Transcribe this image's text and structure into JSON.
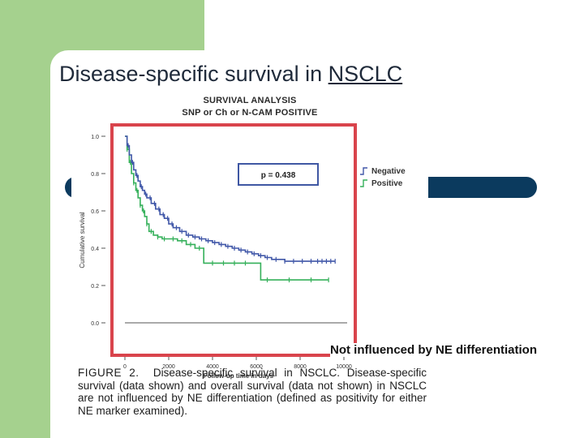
{
  "slide": {
    "title_prefix": "Disease-specific survival in ",
    "title_link": "NSCLC",
    "callout": "Not influenced by NE differentiation"
  },
  "figure": {
    "panel_title_line1": "SURVIVAL ANALYSIS",
    "panel_title_line2": "SNP or Ch or N-CAM POSITIVE",
    "p_value": "p = 0.438",
    "caption_label": "FIGURE 2.",
    "caption_text": "Disease-specific survival in NSCLC. Disease-specific survival (data shown) and overall survival (data not shown) in NSCLC are not influenced by NE differentiation (defined as positivity for either NE marker examined)."
  },
  "colors": {
    "frame": "#d9444c",
    "negative": "#4057a8",
    "positive": "#35b05a",
    "green_panel": "#a5d18e",
    "pill": "#0b3a5e"
  },
  "chart_data": {
    "type": "line",
    "title": "SURVIVAL ANALYSIS SNP or Ch or N-CAM POSITIVE",
    "xlabel": "Follow-up time in days",
    "ylabel": "Cumulative survival",
    "xlim": [
      0,
      10000
    ],
    "ylim": [
      0,
      1.0
    ],
    "x_ticks": [
      0,
      2000,
      4000,
      6000,
      8000,
      10000
    ],
    "x_tick_labels": [
      "0",
      "2000",
      "4000",
      "6000",
      "8000",
      "10000"
    ],
    "y_ticks": [
      0.0,
      0.2,
      0.4,
      0.6,
      0.8,
      1.0
    ],
    "y_tick_labels": [
      "0.0",
      "0.2",
      "0.4",
      "0.6",
      "0.8",
      "1.0"
    ],
    "legend": [
      "Negative",
      "Positive"
    ],
    "legend_position": "right",
    "annotation": "p = 0.438",
    "series": [
      {
        "name": "Negative",
        "x": [
          0,
          100,
          200,
          300,
          400,
          500,
          600,
          700,
          800,
          900,
          1000,
          1200,
          1400,
          1600,
          1800,
          2000,
          2200,
          2500,
          2800,
          3100,
          3400,
          3700,
          4000,
          4300,
          4600,
          4900,
          5200,
          5500,
          5800,
          6100,
          6400,
          6700,
          7000,
          7300,
          7600,
          7900,
          8200,
          8500,
          8800,
          9200,
          9600
        ],
        "y": [
          1.0,
          0.95,
          0.9,
          0.86,
          0.82,
          0.79,
          0.76,
          0.73,
          0.71,
          0.69,
          0.67,
          0.64,
          0.61,
          0.58,
          0.56,
          0.53,
          0.51,
          0.49,
          0.47,
          0.46,
          0.45,
          0.44,
          0.43,
          0.42,
          0.41,
          0.4,
          0.39,
          0.38,
          0.37,
          0.36,
          0.35,
          0.34,
          0.34,
          0.33,
          0.33,
          0.33,
          0.33,
          0.33,
          0.33,
          0.33,
          0.33
        ],
        "censored_x": [
          150,
          350,
          550,
          750,
          950,
          1150,
          1350,
          1550,
          1750,
          1950,
          2150,
          2350,
          2600,
          2900,
          3200,
          3500,
          3800,
          4100,
          4400,
          4700,
          5000,
          5300,
          5600,
          5900,
          6200,
          6500,
          6900,
          7300,
          7700,
          8100,
          8500,
          8800,
          9000,
          9200,
          9400,
          9600
        ]
      },
      {
        "name": "Positive",
        "x": [
          0,
          100,
          200,
          300,
          400,
          500,
          600,
          700,
          800,
          900,
          1000,
          1100,
          1300,
          1500,
          1700,
          2000,
          2400,
          2800,
          3200,
          3500,
          3600,
          4000,
          4500,
          5000,
          5500,
          6000,
          6200,
          6500,
          7000,
          7500,
          8000,
          8500,
          9000,
          9300
        ],
        "y": [
          1.0,
          0.93,
          0.86,
          0.8,
          0.75,
          0.71,
          0.67,
          0.63,
          0.6,
          0.57,
          0.53,
          0.49,
          0.47,
          0.46,
          0.45,
          0.45,
          0.44,
          0.42,
          0.4,
          0.4,
          0.32,
          0.32,
          0.32,
          0.32,
          0.32,
          0.32,
          0.23,
          0.23,
          0.23,
          0.23,
          0.23,
          0.23,
          0.23,
          0.23
        ],
        "censored_x": [
          100,
          250,
          400,
          550,
          700,
          850,
          1000,
          1200,
          1500,
          1800,
          2200,
          2600,
          3000,
          3400,
          4000,
          4500,
          5000,
          5500,
          6500,
          7500,
          8500,
          9300
        ]
      }
    ]
  }
}
